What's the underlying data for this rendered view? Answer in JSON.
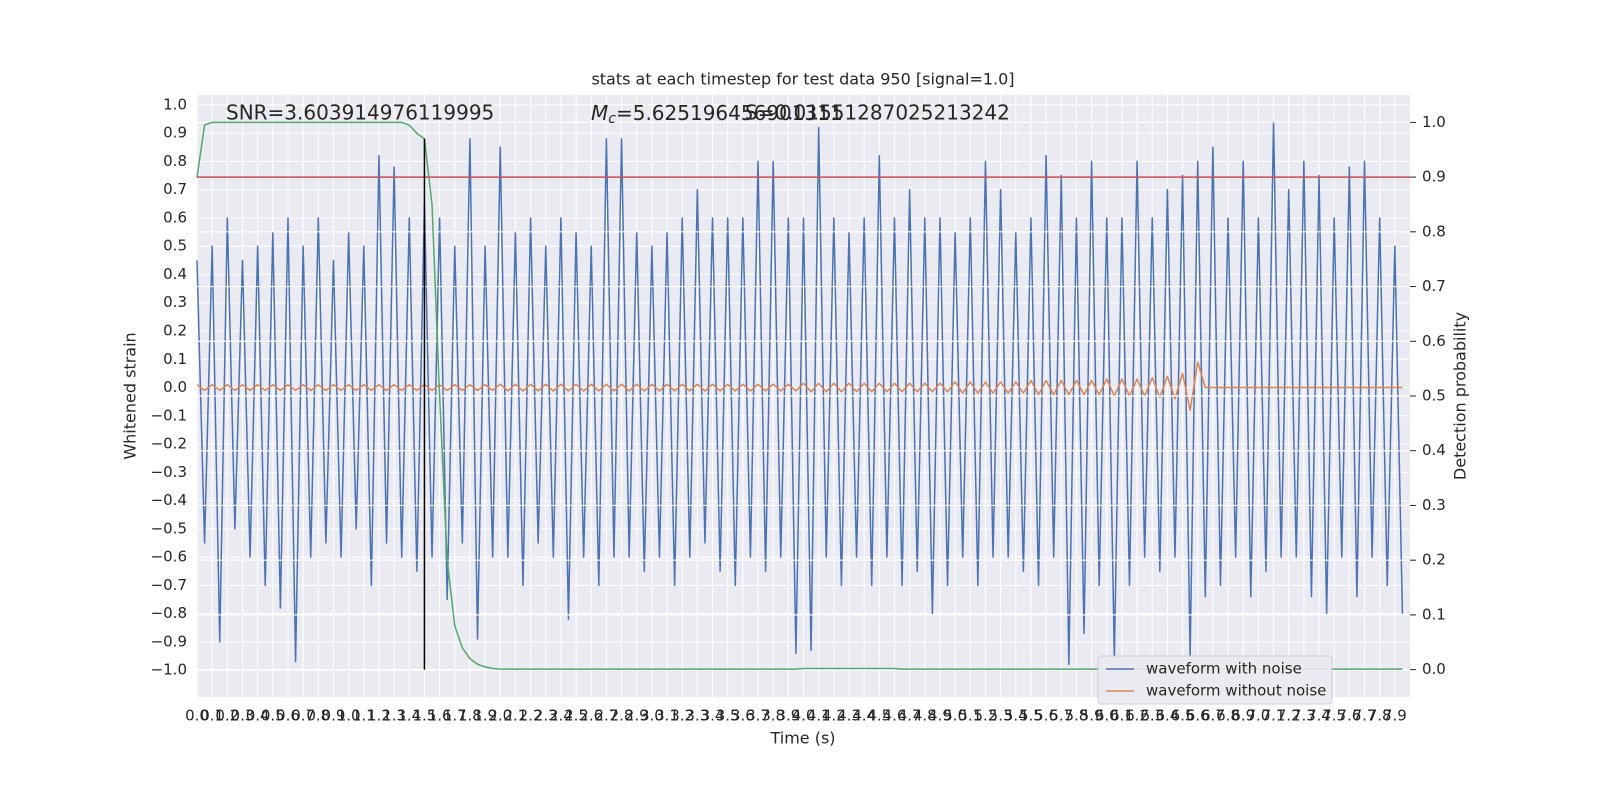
{
  "chart_data": {
    "type": "line",
    "title": "stats at each timestep for test data 950 [signal=1.0]",
    "x_label": "Time (s)",
    "y_label": "Whitened strain",
    "y2_label": "Detection probability",
    "annotations": [
      "SNR=3.603914976119995",
      "Mc=5.625196456901311",
      "S=0.01551287025213242"
    ],
    "grid": true,
    "legend": "lower right",
    "xlim": [
      0,
      8
    ],
    "ylim": [
      -1.095,
      1.035
    ],
    "y2lim": [
      -0.05,
      1.05
    ],
    "xticks": [
      {
        "value": 0,
        "label": "0.0"
      },
      0.1,
      0.2,
      0.3,
      0.4,
      0.5,
      0.6,
      0.7,
      0.8,
      0.9,
      {
        "value": 1,
        "label": "1.0"
      },
      1.1,
      1.2,
      1.3,
      1.4,
      1.5,
      1.6,
      1.7,
      1.8,
      1.9,
      {
        "value": 2,
        "label": "2.0"
      },
      2.1,
      2.2,
      2.3,
      2.4,
      2.5,
      2.6,
      2.7,
      2.8,
      2.9,
      {
        "value": 3,
        "label": "3.0"
      },
      3.1,
      3.2,
      3.3,
      3.4,
      3.5,
      3.6,
      3.7,
      3.8,
      3.9,
      {
        "value": 4,
        "label": "4.0"
      },
      4.1,
      4.2,
      4.3,
      4.4,
      4.5,
      4.6,
      4.7,
      4.8,
      4.9,
      {
        "value": 5,
        "label": "5.0"
      },
      5.1,
      5.2,
      5.3,
      5.4,
      5.5,
      5.6,
      5.7,
      5.8,
      5.9,
      {
        "value": 6,
        "label": "6.0"
      },
      6.1,
      6.2,
      6.3,
      6.4,
      6.5,
      6.6,
      6.7,
      6.8,
      6.9,
      {
        "value": 7,
        "label": "7.0"
      },
      7.1,
      7.2,
      7.3,
      7.4,
      7.5,
      7.6,
      7.7,
      7.8,
      7.9
    ],
    "yticks": [
      {
        "value": -1,
        "label": "−1.0"
      },
      {
        "value": -0.9,
        "label": "−0.9"
      },
      {
        "value": -0.8,
        "label": "−0.8"
      },
      {
        "value": -0.7,
        "label": "−0.7"
      },
      {
        "value": -0.6,
        "label": "−0.6"
      },
      {
        "value": -0.5,
        "label": "−0.5"
      },
      {
        "value": -0.4,
        "label": "−0.4"
      },
      {
        "value": -0.3,
        "label": "−0.3"
      },
      {
        "value": -0.2,
        "label": "−0.2"
      },
      {
        "value": -0.1,
        "label": "−0.1"
      },
      {
        "value": 0,
        "label": "0.0"
      },
      0.1,
      0.2,
      0.3,
      0.4,
      0.5,
      0.6,
      0.7,
      0.8,
      0.9,
      {
        "value": 1,
        "label": "1.0"
      }
    ],
    "y2ticks": [
      {
        "value": 0,
        "label": "0.0"
      },
      0.1,
      0.2,
      0.3,
      0.4,
      0.5,
      0.6,
      0.7,
      0.8,
      0.9,
      {
        "value": 1,
        "label": "1.0"
      }
    ],
    "threshold": {
      "value": 0.9,
      "color": "#c44e52",
      "axis": "y2"
    },
    "marker": {
      "x": 1.5,
      "color": "#000000"
    },
    "x": [
      0,
      0.05,
      0.1,
      0.15,
      0.2,
      0.25,
      0.3,
      0.35,
      0.4,
      0.45,
      0.5,
      0.55,
      0.6,
      0.65,
      0.7,
      0.75,
      0.8,
      0.85,
      0.9,
      0.95,
      1,
      1.05,
      1.1,
      1.15,
      1.2,
      1.25,
      1.3,
      1.35,
      1.4,
      1.45,
      1.5,
      1.55,
      1.6,
      1.65,
      1.7,
      1.75,
      1.8,
      1.85,
      1.9,
      1.95,
      2,
      2.05,
      2.1,
      2.15,
      2.2,
      2.25,
      2.3,
      2.35,
      2.4,
      2.45,
      2.5,
      2.55,
      2.6,
      2.65,
      2.7,
      2.75,
      2.8,
      2.85,
      2.9,
      2.95,
      3,
      3.05,
      3.1,
      3.15,
      3.2,
      3.25,
      3.3,
      3.35,
      3.4,
      3.45,
      3.5,
      3.55,
      3.6,
      3.65,
      3.7,
      3.75,
      3.8,
      3.85,
      3.9,
      3.95,
      4,
      4.05,
      4.1,
      4.15,
      4.2,
      4.25,
      4.3,
      4.35,
      4.4,
      4.45,
      4.5,
      4.55,
      4.6,
      4.65,
      4.7,
      4.75,
      4.8,
      4.85,
      4.9,
      4.95,
      5,
      5.05,
      5.1,
      5.15,
      5.2,
      5.25,
      5.3,
      5.35,
      5.4,
      5.45,
      5.5,
      5.55,
      5.6,
      5.65,
      5.7,
      5.75,
      5.8,
      5.85,
      5.9,
      5.95,
      6,
      6.05,
      6.1,
      6.15,
      6.2,
      6.25,
      6.3,
      6.35,
      6.4,
      6.45,
      6.5,
      6.55,
      6.6,
      6.65,
      6.7,
      6.75,
      6.8,
      6.85,
      6.9,
      6.95,
      7,
      7.05,
      7.1,
      7.15,
      7.2,
      7.25,
      7.3,
      7.35,
      7.4,
      7.45,
      7.5,
      7.55,
      7.6,
      7.65,
      7.7,
      7.75,
      7.8,
      7.85,
      7.9,
      7.95
    ],
    "series": [
      {
        "name": "waveform with noise",
        "color": "#4c72b0",
        "values": [
          0.45,
          -0.55,
          0.5,
          -0.9,
          0.6,
          -0.5,
          0.45,
          -0.6,
          0.5,
          -0.7,
          0.55,
          -0.78,
          0.6,
          -0.97,
          0.5,
          -0.6,
          0.6,
          -0.55,
          0.45,
          -0.6,
          0.55,
          -0.5,
          0.5,
          -0.7,
          0.82,
          -0.55,
          0.78,
          -0.6,
          0.6,
          -0.65,
          0.65,
          -0.6,
          0.6,
          -0.75,
          0.5,
          -0.55,
          0.88,
          -0.89,
          0.5,
          -0.6,
          0.85,
          -0.6,
          0.55,
          -0.7,
          0.6,
          -0.55,
          0.5,
          -0.6,
          0.6,
          -0.82,
          0.55,
          -0.6,
          0.5,
          -0.7,
          0.88,
          -0.6,
          0.88,
          -0.6,
          0.55,
          -0.65,
          0.5,
          -0.6,
          0.55,
          -0.7,
          0.6,
          -0.6,
          0.7,
          -0.55,
          0.6,
          -0.65,
          0.6,
          -0.7,
          0.6,
          -0.6,
          0.8,
          -0.65,
          0.8,
          -0.6,
          0.6,
          -0.94,
          0.6,
          -0.93,
          0.92,
          -0.6,
          0.6,
          -0.7,
          0.55,
          -0.6,
          0.6,
          -0.7,
          0.82,
          -0.6,
          0.6,
          -0.7,
          0.7,
          -0.65,
          0.6,
          -0.8,
          0.6,
          -0.7,
          0.55,
          -0.6,
          0.6,
          -0.7,
          0.8,
          -0.6,
          0.7,
          -0.6,
          0.55,
          -0.65,
          0.6,
          -0.7,
          0.82,
          -0.6,
          0.75,
          -0.98,
          0.6,
          -0.87,
          0.8,
          -0.7,
          0.6,
          -0.96,
          0.6,
          -0.7,
          0.8,
          -0.6,
          0.6,
          -0.65,
          0.7,
          -0.6,
          0.75,
          -0.95,
          0.8,
          -0.74,
          0.85,
          -0.7,
          0.6,
          -0.6,
          0.8,
          -0.74,
          0.6,
          -0.65,
          0.94,
          -0.6,
          0.7,
          -0.6,
          0.8,
          -0.74,
          0.75,
          -0.8,
          0.6,
          -0.6,
          0.78,
          -0.74,
          0.8,
          -0.6,
          0.6,
          -0.7,
          0.5,
          -0.8
        ]
      },
      {
        "name": "waveform without noise",
        "color": "#dd8452",
        "values": [
          0.01,
          -0.01,
          0.01,
          -0.01,
          0.01,
          -0.01,
          0.01,
          -0.01,
          0.01,
          -0.01,
          0.01,
          -0.01,
          0.01,
          -0.01,
          0.01,
          -0.01,
          0.01,
          -0.01,
          0.01,
          -0.01,
          0.01,
          -0.01,
          0.01,
          -0.01,
          0.01,
          -0.01,
          0.01,
          -0.01,
          0.01,
          -0.01,
          0.01,
          -0.01,
          0.01,
          -0.01,
          0.01,
          -0.01,
          0.01,
          -0.01,
          0.01,
          -0.01,
          0.012,
          -0.012,
          0.012,
          -0.012,
          0.012,
          -0.012,
          0.012,
          -0.012,
          0.012,
          -0.012,
          0.012,
          -0.012,
          0.012,
          -0.012,
          0.012,
          -0.012,
          0.012,
          -0.012,
          0.012,
          -0.012,
          0.012,
          -0.012,
          0.012,
          -0.012,
          0.012,
          -0.012,
          0.012,
          -0.012,
          0.012,
          -0.012,
          0.012,
          -0.012,
          0.012,
          -0.012,
          0.012,
          -0.012,
          0.012,
          -0.012,
          0.012,
          -0.012,
          0.015,
          -0.015,
          0.015,
          -0.015,
          0.015,
          -0.015,
          0.015,
          -0.015,
          0.015,
          -0.015,
          0.015,
          -0.015,
          0.015,
          -0.015,
          0.015,
          -0.015,
          0.015,
          -0.015,
          0.015,
          -0.015,
          0.02,
          -0.02,
          0.02,
          -0.02,
          0.02,
          -0.02,
          0.02,
          -0.02,
          0.02,
          -0.02,
          0.025,
          -0.025,
          0.025,
          -0.025,
          0.025,
          -0.025,
          0.025,
          -0.025,
          0.025,
          -0.025,
          0.03,
          -0.03,
          0.03,
          -0.03,
          0.03,
          -0.03,
          0.035,
          -0.035,
          0.04,
          -0.04,
          0.05,
          -0.08,
          0.09,
          0,
          0,
          0,
          0,
          0,
          0,
          0,
          0,
          0,
          0,
          0,
          0,
          0,
          0,
          0,
          0,
          0,
          0,
          0,
          0,
          0,
          0,
          0,
          0,
          0,
          0,
          0
        ]
      }
    ],
    "probability": {
      "color": "#55a868",
      "axis": "y2",
      "values": [
        0.9,
        0.995,
        1,
        1,
        1,
        1,
        1,
        1,
        1,
        1,
        1,
        1,
        1,
        1,
        1,
        1,
        1,
        1,
        1,
        1,
        1,
        1,
        1,
        1,
        1,
        1,
        1,
        1,
        0.995,
        0.98,
        0.97,
        0.85,
        0.5,
        0.2,
        0.08,
        0.04,
        0.02,
        0.01,
        0.005,
        0.002,
        0.001,
        0.001,
        0.001,
        0.001,
        0.001,
        0.001,
        0.001,
        0.001,
        0.001,
        0.001,
        0.001,
        0.001,
        0.001,
        0.001,
        0.001,
        0.001,
        0.001,
        0.001,
        0.001,
        0.001,
        0.001,
        0.001,
        0.001,
        0.001,
        0.001,
        0.001,
        0.001,
        0.001,
        0.001,
        0.001,
        0.001,
        0.001,
        0.001,
        0.001,
        0.001,
        0.001,
        0.001,
        0.001,
        0.001,
        0.001,
        0.002,
        0.002,
        0.002,
        0.002,
        0.002,
        0.002,
        0.002,
        0.002,
        0.002,
        0.002,
        0.002,
        0.002,
        0.002,
        0.001,
        0.001,
        0.001,
        0.001,
        0.001,
        0.001,
        0.001,
        0.001,
        0.001,
        0.001,
        0.001,
        0.001,
        0.001,
        0.001,
        0.001,
        0.001,
        0.001,
        0.001,
        0.001,
        0.001,
        0.001,
        0.001,
        0.001,
        0.001,
        0.001,
        0.001,
        0.001,
        0.001,
        0.001,
        0.001,
        0.001,
        0.001,
        0.001,
        0.001,
        0.001,
        0.001,
        0.001,
        0.001,
        0.001,
        0.001,
        0.001,
        0.001,
        0.001,
        0.001,
        0.001,
        0.001,
        0.001,
        0.001,
        0.001,
        0.001,
        0.001,
        0.001,
        0.001,
        0.001,
        0.001,
        0.001,
        0.001,
        0.001,
        0.001,
        0.001,
        0.001,
        0.001,
        0.001,
        0.001,
        0.001,
        0.001,
        0.001,
        0.001,
        0.001,
        0.001,
        0.001
      ]
    }
  }
}
